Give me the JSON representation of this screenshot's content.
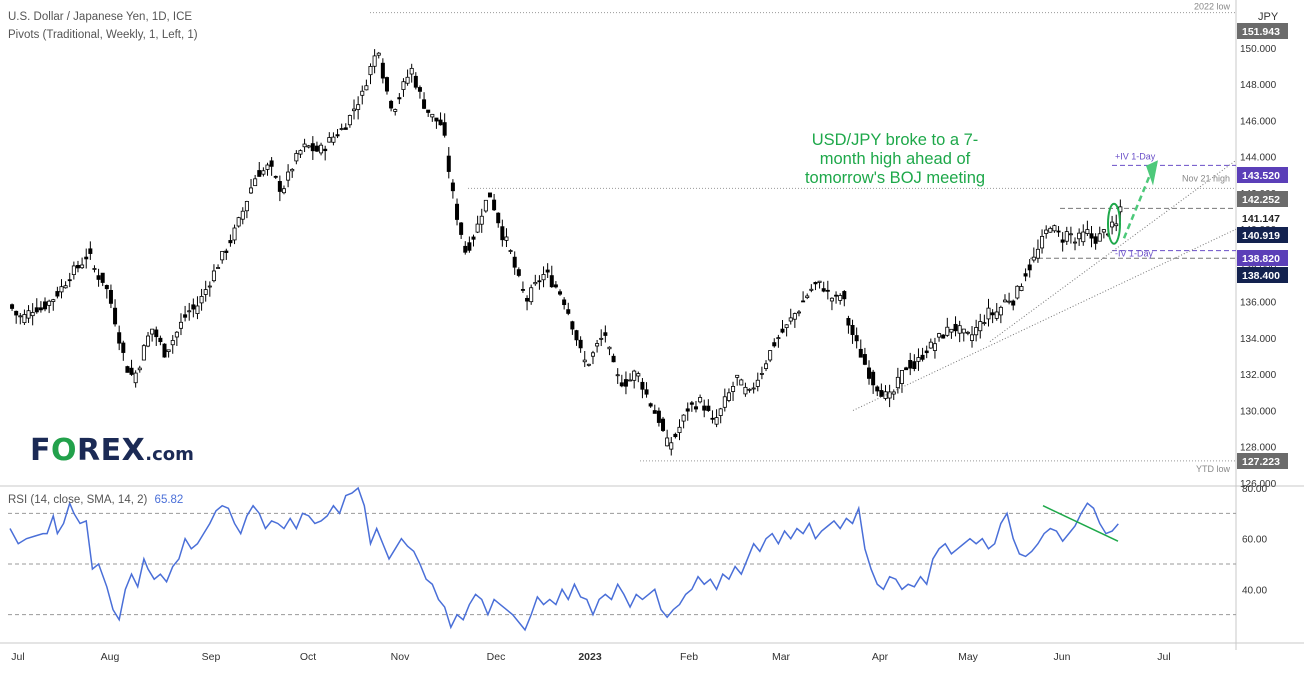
{
  "header": {
    "title": "U.S. Dollar / Japanese Yen, 1D, ICE",
    "indicator": "Pivots (Traditional, Weekly, 1, Left, 1)",
    "rsi_label": "RSI (14, close, SMA, 14, 2)",
    "rsi_value": "65.82"
  },
  "logo": {
    "text_pre": "F",
    "text_o": "O",
    "text_post": "REX",
    "suffix": ".com"
  },
  "annotation": {
    "line1": "USD/JPY broke to a 7-",
    "line2": "month high ahead of",
    "line3": "tomorrow's BOJ meeting"
  },
  "colors": {
    "up": "#000000",
    "down": "#000000",
    "rsi": "#4a6fd8",
    "annotation": "#1ea84a",
    "pivot": "#6a4fc8",
    "axis_dark": "#1b2a55"
  },
  "chart_data": {
    "type": "candlestick",
    "currency_label": "JPY",
    "price_axis": {
      "ylim": [
        126.0,
        152.2
      ],
      "ticks": [
        "150.000",
        "148.000",
        "146.000",
        "144.000",
        "142.000",
        "140.000",
        "138.000",
        "136.000",
        "134.000",
        "132.000",
        "130.000",
        "128.000",
        "126.000"
      ]
    },
    "x_labels": [
      "Jul",
      "Aug",
      "Sep",
      "Oct",
      "Nov",
      "Dec",
      "2023",
      "Feb",
      "Mar",
      "Apr",
      "May",
      "Jun",
      "Jul"
    ],
    "price_badges": [
      {
        "value": "151.943",
        "style": "grey"
      },
      {
        "value": "143.520",
        "style": "purple"
      },
      {
        "value": "142.252",
        "style": "grey"
      },
      {
        "value": "141.147",
        "style": "plain"
      },
      {
        "value": "140.919",
        "style": "navy"
      },
      {
        "value": "138.820",
        "style": "purple"
      },
      {
        "value": "138.400",
        "style": "navy"
      },
      {
        "value": "127.223",
        "style": "grey"
      }
    ],
    "level_labels": [
      {
        "text": "2022 low",
        "price": 151.943
      },
      {
        "text": "Nov 21 high",
        "price": 142.252
      },
      {
        "text": "YTD low",
        "price": 127.223
      },
      {
        "text": "+IV 1-Day",
        "price": 143.52
      },
      {
        "text": "-IV 1-Day",
        "price": 138.82
      }
    ],
    "close_series": [
      [
        0,
        135.8
      ],
      [
        3,
        135.3
      ],
      [
        6,
        135.1
      ],
      [
        9,
        135.4
      ],
      [
        12,
        135.7
      ],
      [
        15,
        135.6
      ],
      [
        18,
        135.9
      ],
      [
        21,
        136.2
      ],
      [
        24,
        136.6
      ],
      [
        27,
        137.1
      ],
      [
        30,
        137.6
      ],
      [
        33,
        137.9
      ],
      [
        36,
        138.3
      ],
      [
        38,
        138.7
      ],
      [
        42,
        137.5
      ],
      [
        45,
        137.2
      ],
      [
        48,
        136.4
      ],
      [
        51,
        135.0
      ],
      [
        54,
        133.5
      ],
      [
        57,
        132.3
      ],
      [
        60,
        131.8
      ],
      [
        63,
        132.6
      ],
      [
        66,
        133.8
      ],
      [
        69,
        134.5
      ],
      [
        72,
        133.9
      ],
      [
        75,
        133.2
      ],
      [
        78,
        133.7
      ],
      [
        81,
        134.3
      ],
      [
        84,
        135.0
      ],
      [
        87,
        135.5
      ],
      [
        90,
        135.6
      ],
      [
        93,
        136.2
      ],
      [
        96,
        136.9
      ],
      [
        99,
        137.6
      ],
      [
        102,
        138.3
      ],
      [
        105,
        138.9
      ],
      [
        108,
        139.6
      ],
      [
        111,
        140.4
      ],
      [
        114,
        141.3
      ],
      [
        117,
        142.3
      ],
      [
        120,
        143.1
      ],
      [
        123,
        143.2
      ],
      [
        126,
        143.5
      ],
      [
        129,
        142.7
      ],
      [
        132,
        142.1
      ],
      [
        135,
        142.9
      ],
      [
        138,
        143.7
      ],
      [
        141,
        144.3
      ],
      [
        144,
        144.6
      ],
      [
        147,
        144.4
      ],
      [
        150,
        144.3
      ],
      [
        153,
        144.6
      ],
      [
        156,
        145.0
      ],
      [
        159,
        145.3
      ],
      [
        162,
        145.6
      ],
      [
        165,
        146.2
      ],
      [
        168,
        146.9
      ],
      [
        171,
        147.4
      ],
      [
        174,
        148.6
      ],
      [
        177,
        149.5
      ],
      [
        179,
        150.0
      ],
      [
        181,
        148.6
      ],
      [
        183,
        147.6
      ],
      [
        186,
        146.6
      ],
      [
        189,
        147.3
      ],
      [
        192,
        148.2
      ],
      [
        195,
        148.8
      ],
      [
        198,
        147.7
      ],
      [
        201,
        146.9
      ],
      [
        204,
        146.3
      ],
      [
        207,
        146.0
      ],
      [
        210,
        145.7
      ],
      [
        213,
        143.3
      ],
      [
        216,
        141.2
      ],
      [
        219,
        139.8
      ],
      [
        221,
        138.8
      ],
      [
        224,
        139.3
      ],
      [
        227,
        140.2
      ],
      [
        230,
        141.3
      ],
      [
        233,
        141.9
      ],
      [
        236,
        140.9
      ],
      [
        239,
        139.7
      ],
      [
        242,
        139.1
      ],
      [
        245,
        137.9
      ],
      [
        248,
        136.8
      ],
      [
        251,
        136.1
      ],
      [
        254,
        136.7
      ],
      [
        257,
        137.2
      ],
      [
        260,
        137.6
      ],
      [
        263,
        137.1
      ],
      [
        266,
        136.7
      ],
      [
        268,
        136.3
      ],
      [
        270,
        135.8
      ],
      [
        272,
        135.1
      ],
      [
        274,
        134.4
      ],
      [
        276,
        133.6
      ],
      [
        278,
        132.9
      ],
      [
        280,
        132.5
      ],
      [
        283,
        133.1
      ],
      [
        286,
        133.8
      ],
      [
        289,
        134.2
      ],
      [
        292,
        132.7
      ],
      [
        295,
        131.8
      ],
      [
        298,
        131.5
      ],
      [
        301,
        131.7
      ],
      [
        304,
        132.2
      ],
      [
        307,
        131.4
      ],
      [
        310,
        130.6
      ],
      [
        313,
        129.9
      ],
      [
        316,
        129.3
      ],
      [
        318,
        128.3
      ],
      [
        320,
        128.1
      ],
      [
        323,
        128.6
      ],
      [
        326,
        129.3
      ],
      [
        329,
        130.1
      ],
      [
        332,
        130.3
      ],
      [
        335,
        130.5
      ],
      [
        338,
        130.1
      ],
      [
        341,
        129.3
      ],
      [
        344,
        129.7
      ],
      [
        347,
        130.5
      ],
      [
        350,
        131.1
      ],
      [
        353,
        131.8
      ],
      [
        356,
        131.2
      ],
      [
        359,
        130.9
      ],
      [
        362,
        131.6
      ],
      [
        365,
        132.2
      ],
      [
        368,
        133.0
      ],
      [
        371,
        133.7
      ],
      [
        374,
        134.2
      ],
      [
        377,
        134.6
      ],
      [
        380,
        135.2
      ],
      [
        383,
        135.6
      ],
      [
        386,
        136.2
      ],
      [
        389,
        136.7
      ],
      [
        392,
        137.0
      ],
      [
        395,
        136.8
      ],
      [
        398,
        136.3
      ],
      [
        401,
        136.1
      ],
      [
        404,
        136.5
      ],
      [
        407,
        134.8
      ],
      [
        410,
        133.9
      ],
      [
        413,
        133.1
      ],
      [
        416,
        132.3
      ],
      [
        419,
        131.6
      ],
      [
        422,
        131.2
      ],
      [
        425,
        130.8
      ],
      [
        428,
        130.7
      ],
      [
        430,
        131.3
      ],
      [
        433,
        132.0
      ],
      [
        436,
        132.6
      ],
      [
        439,
        132.4
      ],
      [
        442,
        132.9
      ],
      [
        445,
        133.4
      ],
      [
        448,
        133.6
      ],
      [
        451,
        134.0
      ],
      [
        454,
        134.3
      ],
      [
        457,
        134.6
      ],
      [
        460,
        134.5
      ],
      [
        463,
        134.2
      ],
      [
        466,
        134.0
      ],
      [
        469,
        134.5
      ],
      [
        472,
        134.9
      ],
      [
        475,
        135.4
      ],
      [
        478,
        135.3
      ],
      [
        481,
        135.7
      ],
      [
        484,
        136.2
      ],
      [
        487,
        136.1
      ],
      [
        490,
        136.8
      ],
      [
        493,
        137.6
      ],
      [
        496,
        138.1
      ],
      [
        499,
        138.8
      ],
      [
        502,
        139.6
      ],
      [
        505,
        140.3
      ],
      [
        508,
        139.8
      ],
      [
        511,
        139.5
      ],
      [
        514,
        139.9
      ],
      [
        517,
        139.3
      ],
      [
        520,
        139.6
      ],
      [
        523,
        139.8
      ],
      [
        526,
        139.4
      ],
      [
        529,
        139.6
      ],
      [
        532,
        139.9
      ],
      [
        535,
        140.1
      ],
      [
        537,
        140.2
      ],
      [
        539,
        141.2
      ]
    ],
    "rsi": {
      "ylim": [
        20,
        80
      ],
      "ticks": [
        "80.00",
        "60.00",
        "40.00"
      ],
      "bands": [
        30,
        50,
        70
      ],
      "series": [
        [
          0,
          64
        ],
        [
          4,
          58
        ],
        [
          8,
          60
        ],
        [
          12,
          61
        ],
        [
          16,
          62
        ],
        [
          18,
          62
        ],
        [
          21,
          69
        ],
        [
          23,
          62
        ],
        [
          26,
          66
        ],
        [
          29,
          74
        ],
        [
          31,
          70
        ],
        [
          34,
          66
        ],
        [
          37,
          67
        ],
        [
          40,
          48
        ],
        [
          43,
          50
        ],
        [
          47,
          41
        ],
        [
          50,
          32
        ],
        [
          53,
          28
        ],
        [
          56,
          40
        ],
        [
          59,
          46
        ],
        [
          62,
          41
        ],
        [
          65,
          52
        ],
        [
          67,
          48
        ],
        [
          70,
          44
        ],
        [
          73,
          46
        ],
        [
          76,
          43
        ],
        [
          79,
          49
        ],
        [
          82,
          52
        ],
        [
          85,
          60
        ],
        [
          88,
          56
        ],
        [
          91,
          58
        ],
        [
          94,
          62
        ],
        [
          97,
          66
        ],
        [
          100,
          71
        ],
        [
          103,
          73
        ],
        [
          106,
          72
        ],
        [
          109,
          66
        ],
        [
          112,
          62
        ],
        [
          115,
          69
        ],
        [
          118,
          73
        ],
        [
          121,
          70
        ],
        [
          124,
          64
        ],
        [
          127,
          67
        ],
        [
          130,
          66
        ],
        [
          133,
          64
        ],
        [
          136,
          68
        ],
        [
          139,
          64
        ],
        [
          142,
          70
        ],
        [
          145,
          69
        ],
        [
          148,
          66
        ],
        [
          151,
          67
        ],
        [
          154,
          69
        ],
        [
          157,
          73
        ],
        [
          160,
          70
        ],
        [
          163,
          77
        ],
        [
          166,
          78
        ],
        [
          169,
          80
        ],
        [
          172,
          73
        ],
        [
          175,
          58
        ],
        [
          178,
          64
        ],
        [
          181,
          58
        ],
        [
          184,
          52
        ],
        [
          187,
          56
        ],
        [
          190,
          60
        ],
        [
          193,
          57
        ],
        [
          196,
          55
        ],
        [
          199,
          50
        ],
        [
          202,
          44
        ],
        [
          205,
          42
        ],
        [
          208,
          36
        ],
        [
          211,
          33
        ],
        [
          214,
          25
        ],
        [
          217,
          30
        ],
        [
          220,
          28
        ],
        [
          223,
          34
        ],
        [
          226,
          38
        ],
        [
          229,
          36
        ],
        [
          232,
          30
        ],
        [
          235,
          36
        ],
        [
          238,
          34
        ],
        [
          241,
          32
        ],
        [
          244,
          30
        ],
        [
          247,
          27
        ],
        [
          250,
          24
        ],
        [
          253,
          30
        ],
        [
          256,
          37
        ],
        [
          259,
          34
        ],
        [
          262,
          36
        ],
        [
          265,
          34
        ],
        [
          268,
          40
        ],
        [
          271,
          36
        ],
        [
          274,
          42
        ],
        [
          277,
          37
        ],
        [
          280,
          36
        ],
        [
          283,
          30
        ],
        [
          286,
          36
        ],
        [
          289,
          38
        ],
        [
          292,
          36
        ],
        [
          295,
          42
        ],
        [
          298,
          38
        ],
        [
          301,
          33
        ],
        [
          304,
          38
        ],
        [
          307,
          36
        ],
        [
          310,
          38
        ],
        [
          313,
          40
        ],
        [
          316,
          32
        ],
        [
          319,
          29
        ],
        [
          322,
          32
        ],
        [
          325,
          34
        ],
        [
          328,
          38
        ],
        [
          331,
          40
        ],
        [
          334,
          45
        ],
        [
          337,
          42
        ],
        [
          340,
          44
        ],
        [
          343,
          40
        ],
        [
          346,
          46
        ],
        [
          349,
          44
        ],
        [
          352,
          49
        ],
        [
          355,
          46
        ],
        [
          358,
          52
        ],
        [
          361,
          58
        ],
        [
          364,
          55
        ],
        [
          367,
          60
        ],
        [
          370,
          62
        ],
        [
          373,
          58
        ],
        [
          376,
          63
        ],
        [
          379,
          60
        ],
        [
          382,
          64
        ],
        [
          385,
          62
        ],
        [
          388,
          66
        ],
        [
          391,
          60
        ],
        [
          394,
          63
        ],
        [
          397,
          65
        ],
        [
          400,
          67
        ],
        [
          403,
          64
        ],
        [
          406,
          68
        ],
        [
          409,
          66
        ],
        [
          412,
          72
        ],
        [
          415,
          56
        ],
        [
          418,
          48
        ],
        [
          421,
          42
        ],
        [
          424,
          40
        ],
        [
          427,
          45
        ],
        [
          430,
          44
        ],
        [
          433,
          40
        ],
        [
          436,
          42
        ],
        [
          439,
          41
        ],
        [
          442,
          45
        ],
        [
          445,
          42
        ],
        [
          448,
          52
        ],
        [
          451,
          56
        ],
        [
          454,
          58
        ],
        [
          457,
          54
        ],
        [
          460,
          56
        ],
        [
          463,
          58
        ],
        [
          466,
          60
        ],
        [
          469,
          58
        ],
        [
          472,
          60
        ],
        [
          475,
          56
        ],
        [
          478,
          58
        ],
        [
          481,
          66
        ],
        [
          484,
          70
        ],
        [
          487,
          60
        ],
        [
          490,
          54
        ],
        [
          493,
          53
        ],
        [
          496,
          55
        ],
        [
          499,
          58
        ],
        [
          502,
          62
        ],
        [
          505,
          64
        ],
        [
          508,
          63
        ],
        [
          511,
          59
        ],
        [
          514,
          62
        ],
        [
          517,
          65
        ],
        [
          520,
          70
        ],
        [
          523,
          74
        ],
        [
          526,
          72
        ],
        [
          529,
          66
        ],
        [
          532,
          62
        ],
        [
          535,
          63
        ],
        [
          538,
          65.82
        ]
      ]
    }
  }
}
